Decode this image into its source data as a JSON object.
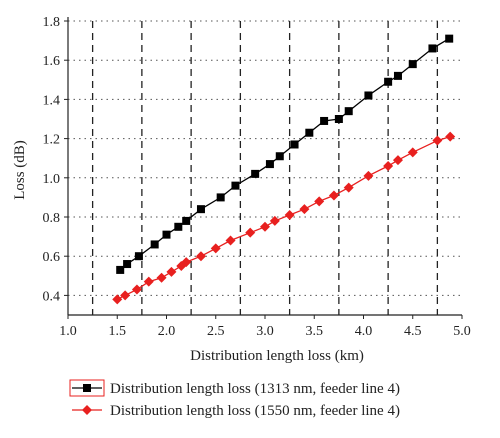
{
  "chart_data": {
    "type": "line",
    "xlabel": "Distribution length loss (km)",
    "ylabel": "Loss (dB)",
    "xlim": [
      1.0,
      5.0
    ],
    "ylim": [
      0.3,
      1.8
    ],
    "x_ticks": [
      "1.0",
      "1.5",
      "2.0",
      "2.5",
      "3.0",
      "3.5",
      "4.0",
      "4.5",
      "5.0"
    ],
    "y_ticks": [
      "0.4",
      "0.6",
      "0.8",
      "1.0",
      "1.2",
      "1.4",
      "1.6",
      "1.8"
    ],
    "dashed_vertical_lines": [
      1.25,
      1.75,
      2.25,
      2.75,
      3.25,
      3.75,
      4.25,
      4.75
    ],
    "dotted_horizontal_grid": true,
    "legend_position": "bottom",
    "series": [
      {
        "name": "Distribution length loss (1313 nm, feeder line 4)",
        "color": "#000000",
        "marker": "square",
        "x": [
          1.53,
          1.6,
          1.72,
          1.88,
          2.0,
          2.12,
          2.2,
          2.35,
          2.55,
          2.7,
          2.9,
          3.05,
          3.15,
          3.3,
          3.45,
          3.6,
          3.75,
          3.85,
          4.05,
          4.25,
          4.35,
          4.5,
          4.7,
          4.87
        ],
        "y": [
          0.53,
          0.56,
          0.6,
          0.66,
          0.71,
          0.75,
          0.78,
          0.84,
          0.9,
          0.96,
          1.02,
          1.07,
          1.11,
          1.17,
          1.23,
          1.29,
          1.3,
          1.34,
          1.42,
          1.49,
          1.52,
          1.58,
          1.66,
          1.71
        ]
      },
      {
        "name": "Distribution length loss (1550 nm, feeder line 4)",
        "color": "#e8201f",
        "marker": "diamond",
        "x": [
          1.5,
          1.58,
          1.7,
          1.82,
          1.95,
          2.05,
          2.15,
          2.2,
          2.35,
          2.5,
          2.65,
          2.85,
          3.0,
          3.1,
          3.25,
          3.4,
          3.55,
          3.7,
          3.85,
          4.05,
          4.25,
          4.35,
          4.5,
          4.75,
          4.88
        ],
        "y": [
          0.38,
          0.4,
          0.43,
          0.47,
          0.49,
          0.52,
          0.55,
          0.57,
          0.6,
          0.64,
          0.68,
          0.72,
          0.75,
          0.78,
          0.81,
          0.84,
          0.88,
          0.91,
          0.95,
          1.01,
          1.06,
          1.09,
          1.13,
          1.19,
          1.21
        ]
      }
    ]
  }
}
